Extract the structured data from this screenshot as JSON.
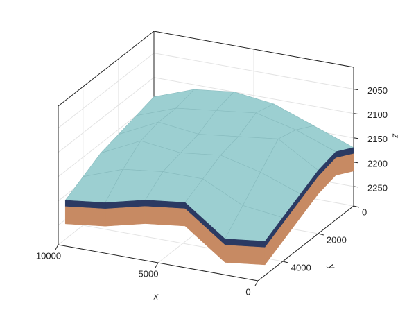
{
  "chart_data": {
    "type": "surface",
    "xlabel": "x",
    "ylabel": "y",
    "zlabel": "z",
    "x": [
      0,
      2000,
      4000,
      6000,
      8000,
      10000
    ],
    "y": [
      0,
      1000,
      2000,
      3000,
      4000,
      5000
    ],
    "z": [
      [
        2170,
        2140,
        2110,
        2100,
        2110,
        2140
      ],
      [
        2150,
        2120,
        2100,
        2110,
        2120,
        2150
      ],
      [
        2160,
        2110,
        2120,
        2130,
        2120,
        2160
      ],
      [
        2180,
        2150,
        2130,
        2140,
        2130,
        2170
      ],
      [
        2200,
        2190,
        2150,
        2150,
        2160,
        2190
      ],
      [
        2220,
        2230,
        2170,
        2180,
        2200,
        2210
      ]
    ],
    "xlim": [
      0,
      10000
    ],
    "xticks": [
      0,
      5000,
      10000
    ],
    "ylim": [
      0,
      5400
    ],
    "yticks": [
      0,
      2000,
      4000
    ],
    "zlim": [
      2005,
      2290
    ],
    "zticks": [
      2050,
      2100,
      2150,
      2200,
      2250
    ],
    "z_inverted": true,
    "grid": true,
    "color": "#9ccfd1",
    "edge_color": "#2b3a63",
    "side_color": "#c78a63"
  }
}
